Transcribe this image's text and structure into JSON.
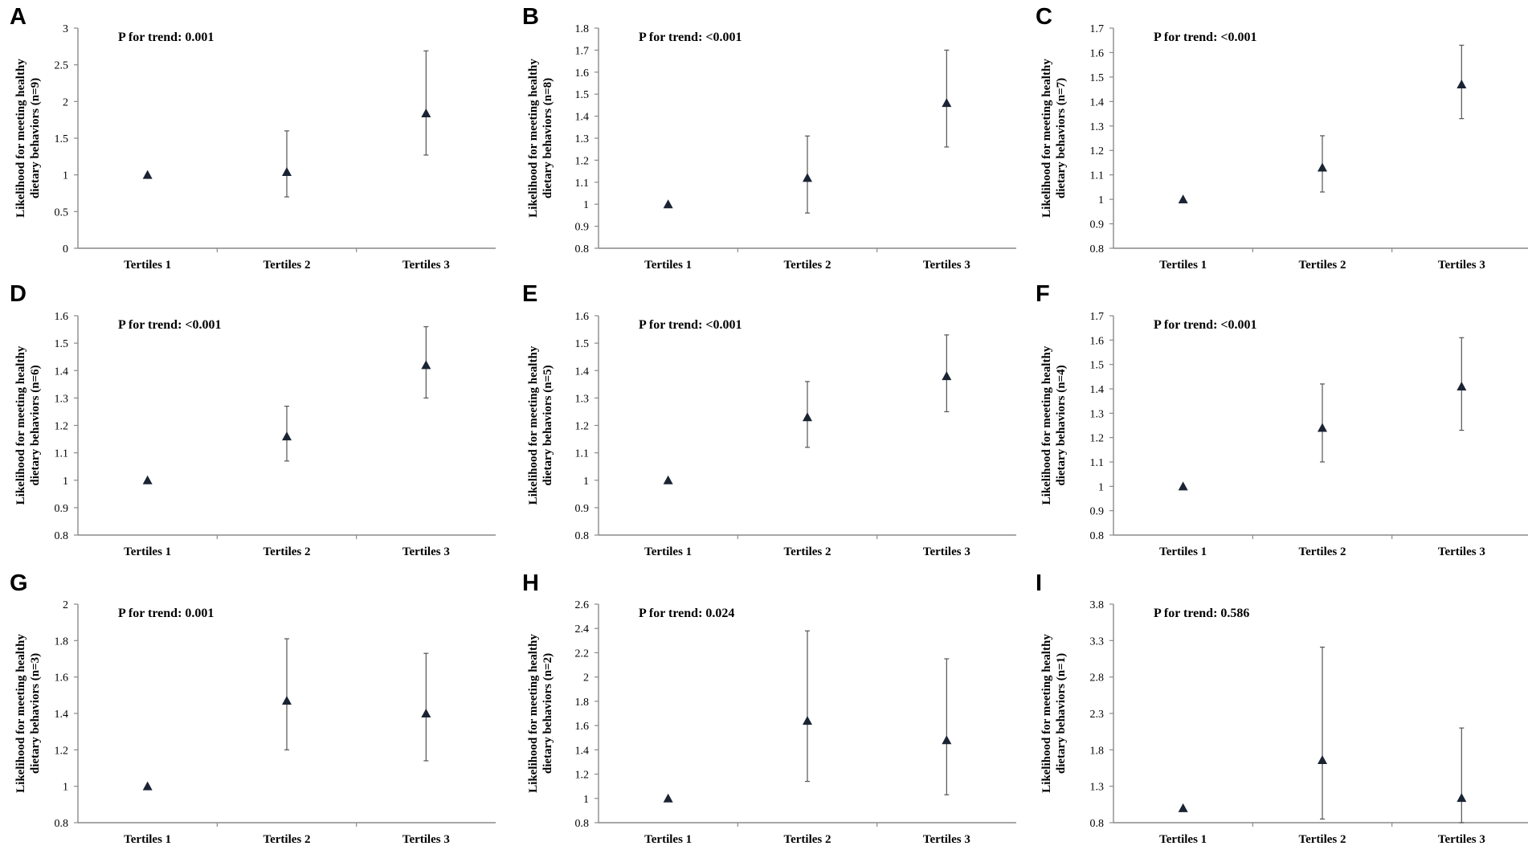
{
  "chart_data": [
    {
      "type": "scatter",
      "panel": "A",
      "annotation": "P for trend: 0.001",
      "ylabel": "Likelihood for meeting healthy dietary behaviors (n=9)",
      "ylabel_lines": [
        "Likelihood for meeting healthy",
        "dietary behaviors (n=9)"
      ],
      "categories": [
        "Tertiles 1",
        "Tertiles 2",
        "Tertiles 3"
      ],
      "values": [
        1.0,
        1.04,
        1.84
      ],
      "lower": [
        1.0,
        0.7,
        1.27
      ],
      "upper": [
        1.0,
        1.6,
        2.69
      ],
      "yticks": [
        "0",
        "0.5",
        "1",
        "1.5",
        "2",
        "2.5",
        "3"
      ],
      "ylim": [
        0,
        3
      ]
    },
    {
      "type": "scatter",
      "panel": "B",
      "annotation": "P for trend: <0.001",
      "ylabel": "Likelihood for meeting healthy dietary behaviors (n=8)",
      "ylabel_lines": [
        "Likelihood for meeting healthy",
        "dietary behaviors (n=8)"
      ],
      "categories": [
        "Tertiles 1",
        "Tertiles 2",
        "Tertiles 3"
      ],
      "values": [
        1.0,
        1.12,
        1.46
      ],
      "lower": [
        1.0,
        0.96,
        1.26
      ],
      "upper": [
        1.0,
        1.31,
        1.7
      ],
      "yticks": [
        "0.8",
        "0.9",
        "1",
        "1.1",
        "1.2",
        "1.3",
        "1.4",
        "1.5",
        "1.6",
        "1.7",
        "1.8"
      ],
      "ylim": [
        0.8,
        1.8
      ]
    },
    {
      "type": "scatter",
      "panel": "C",
      "annotation": "P for trend: <0.001",
      "ylabel": "Likelihood for meeting healthy dietary behaviors (n=7)",
      "ylabel_lines": [
        "Likelihood for meeting healthy",
        "dietary behaviors (n=7)"
      ],
      "categories": [
        "Tertiles 1",
        "Tertiles 2",
        "Tertiles 3"
      ],
      "values": [
        1.0,
        1.13,
        1.47
      ],
      "lower": [
        1.0,
        1.03,
        1.33
      ],
      "upper": [
        1.0,
        1.26,
        1.63
      ],
      "yticks": [
        "0.8",
        "0.9",
        "1",
        "1.1",
        "1.2",
        "1.3",
        "1.4",
        "1.5",
        "1.6",
        "1.7"
      ],
      "ylim": [
        0.8,
        1.7
      ]
    },
    {
      "type": "scatter",
      "panel": "D",
      "annotation": "P for trend: <0.001",
      "ylabel": "Likelihood for meeting healthy dietary behaviors (n=6)",
      "ylabel_lines": [
        "Likelihood for meeting healthy",
        "dietary behaviors (n=6)"
      ],
      "categories": [
        "Tertiles 1",
        "Tertiles 2",
        "Tertiles 3"
      ],
      "values": [
        1.0,
        1.16,
        1.42
      ],
      "lower": [
        1.0,
        1.07,
        1.3
      ],
      "upper": [
        1.0,
        1.27,
        1.56
      ],
      "yticks": [
        "0.8",
        "0.9",
        "1",
        "1.1",
        "1.2",
        "1.3",
        "1.4",
        "1.5",
        "1.6"
      ],
      "ylim": [
        0.8,
        1.6
      ]
    },
    {
      "type": "scatter",
      "panel": "E",
      "annotation": "P for trend: <0.001",
      "ylabel": "Likelihood for meeting healthy dietary behaviors (n=5)",
      "ylabel_lines": [
        "Likelihood for meeting healthy",
        "dietary behaviors (n=5)"
      ],
      "categories": [
        "Tertiles 1",
        "Tertiles 2",
        "Tertiles 3"
      ],
      "values": [
        1.0,
        1.23,
        1.38
      ],
      "lower": [
        1.0,
        1.12,
        1.25
      ],
      "upper": [
        1.0,
        1.36,
        1.53
      ],
      "yticks": [
        "0.8",
        "0.9",
        "1",
        "1.1",
        "1.2",
        "1.3",
        "1.4",
        "1.5",
        "1.6"
      ],
      "ylim": [
        0.8,
        1.6
      ]
    },
    {
      "type": "scatter",
      "panel": "F",
      "annotation": "P for trend: <0.001",
      "ylabel": "Likelihood for meeting healthy dietary behaviors (n=4)",
      "ylabel_lines": [
        "Likelihood for meeting healthy",
        "dietary behaviors (n=4)"
      ],
      "categories": [
        "Tertiles 1",
        "Tertiles 2",
        "Tertiles 3"
      ],
      "values": [
        1.0,
        1.24,
        1.41
      ],
      "lower": [
        1.0,
        1.1,
        1.23
      ],
      "upper": [
        1.0,
        1.42,
        1.61
      ],
      "yticks": [
        "0.8",
        "0.9",
        "1",
        "1.1",
        "1.2",
        "1.3",
        "1.4",
        "1.5",
        "1.6",
        "1.7"
      ],
      "ylim": [
        0.8,
        1.7
      ]
    },
    {
      "type": "scatter",
      "panel": "G",
      "annotation": "P for trend: 0.001",
      "ylabel": "Likelihood for meeting healthy dietary behaviors (n=3)",
      "ylabel_lines": [
        "Likelihood for meeting healthy",
        "dietary behaviors (n=3)"
      ],
      "categories": [
        "Tertiles 1",
        "Tertiles 2",
        "Tertiles 3"
      ],
      "values": [
        1.0,
        1.47,
        1.4
      ],
      "lower": [
        1.0,
        1.2,
        1.14
      ],
      "upper": [
        1.0,
        1.81,
        1.73
      ],
      "yticks": [
        "0.8",
        "1",
        "1.2",
        "1.4",
        "1.6",
        "1.8",
        "2"
      ],
      "ylim": [
        0.8,
        2.0
      ]
    },
    {
      "type": "scatter",
      "panel": "H",
      "annotation": "P for trend: 0.024",
      "ylabel": "Likelihood for meeting healthy dietary behaviors (n=2)",
      "ylabel_lines": [
        "Likelihood for meeting healthy",
        "dietary behaviors (n=2)"
      ],
      "categories": [
        "Tertiles 1",
        "Tertiles 2",
        "Tertiles 3"
      ],
      "values": [
        1.0,
        1.64,
        1.48
      ],
      "lower": [
        1.0,
        1.14,
        1.03
      ],
      "upper": [
        1.0,
        2.38,
        2.15
      ],
      "yticks": [
        "0.8",
        "1",
        "1.2",
        "1.4",
        "1.6",
        "1.8",
        "2",
        "2.2",
        "2.4",
        "2.6"
      ],
      "ylim": [
        0.8,
        2.6
      ]
    },
    {
      "type": "scatter",
      "panel": "I",
      "annotation": "P for trend: 0.586",
      "ylabel": "Likelihood for meeting healthy dietary behaviors (n=1)",
      "ylabel_lines": [
        "Likelihood for meeting healthy",
        "dietary behaviors (n=1)"
      ],
      "categories": [
        "Tertiles 1",
        "Tertiles 2",
        "Tertiles 3"
      ],
      "values": [
        1.0,
        1.66,
        1.14
      ],
      "lower": [
        1.0,
        0.85,
        0.8
      ],
      "upper": [
        1.0,
        3.21,
        2.1
      ],
      "yticks": [
        "0.8",
        "1.3",
        "1.8",
        "2.3",
        "2.8",
        "3.3",
        "3.8"
      ],
      "ylim": [
        0.8,
        3.8
      ]
    }
  ]
}
